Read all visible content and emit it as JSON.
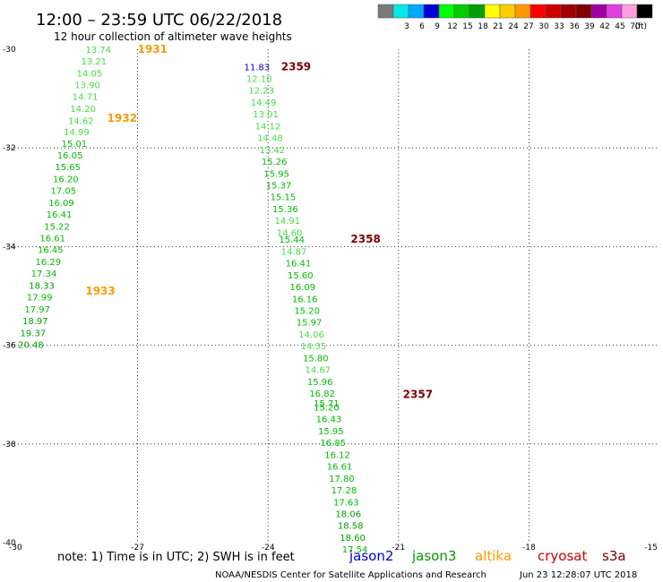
{
  "header": {
    "title": "12:00 – 23:59 UTC 06/22/2018",
    "subtitle": "12 hour collection of altimeter wave heights"
  },
  "legend": {
    "unit": "(ft)",
    "swatches": [
      {
        "label": "",
        "color": "#7a7a7a"
      },
      {
        "label": "3",
        "color": "#00e8e8"
      },
      {
        "label": "6",
        "color": "#00a8ff"
      },
      {
        "label": "9",
        "color": "#0000d8"
      },
      {
        "label": "12",
        "color": "#00ff00"
      },
      {
        "label": "15",
        "color": "#00cc00"
      },
      {
        "label": "18",
        "color": "#00a000"
      },
      {
        "label": "21",
        "color": "#ffff00"
      },
      {
        "label": "24",
        "color": "#ffcc00"
      },
      {
        "label": "27",
        "color": "#ff9900"
      },
      {
        "label": "30",
        "color": "#ff0000"
      },
      {
        "label": "33",
        "color": "#d00000"
      },
      {
        "label": "36",
        "color": "#a00000"
      },
      {
        "label": "39",
        "color": "#800000"
      },
      {
        "label": "42",
        "color": "#a000a0"
      },
      {
        "label": "45",
        "color": "#e040e0"
      },
      {
        "label": "70",
        "color": "#ff9ee0"
      },
      {
        "label": "",
        "color": "#000000"
      }
    ]
  },
  "map": {
    "lon_range": [
      -30,
      -15
    ],
    "lat_range": [
      -40,
      -30
    ],
    "x_ticks": [
      "-30",
      "-27",
      "-24",
      "-21",
      "-18",
      "-15"
    ],
    "y_ticks": [
      "-30",
      "-32",
      "-34",
      "-36",
      "-38",
      "-40"
    ],
    "gridlines_lon": [
      -27,
      -24,
      -21,
      -18
    ],
    "gridlines_lat": [
      -32,
      -34,
      -36,
      -38
    ]
  },
  "chart_data": {
    "type": "scatter",
    "title": "12:00 – 23:59 UTC 06/22/2018",
    "subtitle": "12 hour collection of altimeter wave heights",
    "unit": "ft",
    "tracks": [
      {
        "satellite": "altika",
        "color": "#ff9900",
        "time_labels": [
          {
            "text": "1931",
            "lon": -27.0,
            "lat": -30.0
          },
          {
            "text": "1932",
            "lon": -27.7,
            "lat": -31.4
          },
          {
            "text": "1933",
            "lon": -28.2,
            "lat": -34.9
          }
        ],
        "points": [
          {
            "lon": -28.2,
            "lat": -30.0,
            "swh": "13.74"
          },
          {
            "lon": -28.3,
            "lat": -30.24,
            "swh": "13.21"
          },
          {
            "lon": -28.4,
            "lat": -30.48,
            "swh": "14.05"
          },
          {
            "lon": -28.45,
            "lat": -30.72,
            "swh": "13.90"
          },
          {
            "lon": -28.5,
            "lat": -30.95,
            "swh": "14.71"
          },
          {
            "lon": -28.55,
            "lat": -31.2,
            "swh": "14.20"
          },
          {
            "lon": -28.6,
            "lat": -31.44,
            "swh": "14.62"
          },
          {
            "lon": -28.7,
            "lat": -31.67,
            "swh": "14.99"
          },
          {
            "lon": -28.75,
            "lat": -31.91,
            "swh": "15.01"
          },
          {
            "lon": -28.85,
            "lat": -32.14,
            "swh": "16.05"
          },
          {
            "lon": -28.9,
            "lat": -32.38,
            "swh": "15.65"
          },
          {
            "lon": -28.95,
            "lat": -32.62,
            "swh": "16.20"
          },
          {
            "lon": -29.0,
            "lat": -32.86,
            "swh": "17.05"
          },
          {
            "lon": -29.05,
            "lat": -33.1,
            "swh": "16.09"
          },
          {
            "lon": -29.1,
            "lat": -33.34,
            "swh": "16.41"
          },
          {
            "lon": -29.15,
            "lat": -33.58,
            "swh": "15.22"
          },
          {
            "lon": -29.25,
            "lat": -33.82,
            "swh": "16.61"
          },
          {
            "lon": -29.3,
            "lat": -34.06,
            "swh": "16.45"
          },
          {
            "lon": -29.35,
            "lat": -34.3,
            "swh": "16.29"
          },
          {
            "lon": -29.45,
            "lat": -34.54,
            "swh": "17.34"
          },
          {
            "lon": -29.5,
            "lat": -34.78,
            "swh": "18.33"
          },
          {
            "lon": -29.55,
            "lat": -35.02,
            "swh": "17.99"
          },
          {
            "lon": -29.6,
            "lat": -35.26,
            "swh": "17.97"
          },
          {
            "lon": -29.65,
            "lat": -35.5,
            "swh": "18.97"
          },
          {
            "lon": -29.7,
            "lat": -35.74,
            "swh": "19.37"
          },
          {
            "lon": -29.75,
            "lat": -35.98,
            "swh": "20.48"
          }
        ]
      },
      {
        "satellite": "s3a",
        "color": "#800000",
        "time_labels": [
          {
            "text": "2359",
            "lon": -23.7,
            "lat": -30.35
          },
          {
            "text": "2358",
            "lon": -22.1,
            "lat": -33.85
          },
          {
            "text": "2357",
            "lon": -20.9,
            "lat": -37.0
          }
        ],
        "points": [
          {
            "lon": -24.55,
            "lat": -30.35,
            "swh": "11.83"
          },
          {
            "lon": -24.5,
            "lat": -30.59,
            "swh": "12.10"
          },
          {
            "lon": -24.45,
            "lat": -30.83,
            "swh": "12.23"
          },
          {
            "lon": -24.4,
            "lat": -31.07,
            "swh": "14.49"
          },
          {
            "lon": -24.35,
            "lat": -31.31,
            "swh": "13.01"
          },
          {
            "lon": -24.3,
            "lat": -31.55,
            "swh": "14.12"
          },
          {
            "lon": -24.25,
            "lat": -31.79,
            "swh": "14.48"
          },
          {
            "lon": -24.2,
            "lat": -32.03,
            "swh": "13.42"
          },
          {
            "lon": -24.15,
            "lat": -32.27,
            "swh": "15.26"
          },
          {
            "lon": -24.1,
            "lat": -32.51,
            "swh": "15.95"
          },
          {
            "lon": -24.05,
            "lat": -32.75,
            "swh": "15.37"
          },
          {
            "lon": -23.95,
            "lat": -32.99,
            "swh": "15.15"
          },
          {
            "lon": -23.9,
            "lat": -33.23,
            "swh": "15.36"
          },
          {
            "lon": -23.85,
            "lat": -33.47,
            "swh": "14.91"
          },
          {
            "lon": -23.8,
            "lat": -33.71,
            "swh": "14.60"
          },
          {
            "lon": -23.75,
            "lat": -33.85,
            "swh": "15.44"
          },
          {
            "lon": -23.7,
            "lat": -34.09,
            "swh": "14.87"
          },
          {
            "lon": -23.6,
            "lat": -34.33,
            "swh": "16.41"
          },
          {
            "lon": -23.55,
            "lat": -34.57,
            "swh": "15.60"
          },
          {
            "lon": -23.5,
            "lat": -34.81,
            "swh": "16.09"
          },
          {
            "lon": -23.45,
            "lat": -35.05,
            "swh": "16.16"
          },
          {
            "lon": -23.4,
            "lat": -35.29,
            "swh": "15.20"
          },
          {
            "lon": -23.35,
            "lat": -35.53,
            "swh": "15.97"
          },
          {
            "lon": -23.3,
            "lat": -35.77,
            "swh": "14.06"
          },
          {
            "lon": -23.25,
            "lat": -36.01,
            "swh": "14.35"
          },
          {
            "lon": -23.2,
            "lat": -36.25,
            "swh": "15.80"
          },
          {
            "lon": -23.15,
            "lat": -36.49,
            "swh": "14.67"
          },
          {
            "lon": -23.1,
            "lat": -36.73,
            "swh": "15.96"
          },
          {
            "lon": -23.05,
            "lat": -36.97,
            "swh": "16.82"
          },
          {
            "lon": -22.95,
            "lat": -37.17,
            "swh": "15.71"
          },
          {
            "lon": -22.95,
            "lat": -37.25,
            "swh": "15.20"
          },
          {
            "lon": -22.9,
            "lat": -37.49,
            "swh": "16.43"
          },
          {
            "lon": -22.85,
            "lat": -37.73,
            "swh": "15.95"
          },
          {
            "lon": -22.8,
            "lat": -37.97,
            "swh": "16.85"
          },
          {
            "lon": -22.7,
            "lat": -38.21,
            "swh": "16.12"
          },
          {
            "lon": -22.65,
            "lat": -38.45,
            "swh": "16.61"
          },
          {
            "lon": -22.6,
            "lat": -38.69,
            "swh": "17.80"
          },
          {
            "lon": -22.55,
            "lat": -38.93,
            "swh": "17.28"
          },
          {
            "lon": -22.5,
            "lat": -39.17,
            "swh": "17.63"
          },
          {
            "lon": -22.45,
            "lat": -39.41,
            "swh": "18.06"
          },
          {
            "lon": -22.4,
            "lat": -39.65,
            "swh": "18.58"
          },
          {
            "lon": -22.35,
            "lat": -39.89,
            "swh": "18.60"
          },
          {
            "lon": -22.3,
            "lat": -40.13,
            "swh": "17.54"
          }
        ]
      }
    ]
  },
  "footer": {
    "note": "note:  1) Time is in UTC;  2) SWH is in feet",
    "satellites": [
      {
        "name": "jason2",
        "color": "#0000cc"
      },
      {
        "name": "jason3",
        "color": "#009900"
      },
      {
        "name": "altika",
        "color": "#ff9900"
      },
      {
        "name": "cryosat",
        "color": "#cc0000"
      },
      {
        "name": "s3a",
        "color": "#800000"
      }
    ],
    "credit": "NOAA/NESDIS Center for Satellite Applications and Research",
    "generated": "Jun 23 12:28:07 UTC 2018"
  }
}
